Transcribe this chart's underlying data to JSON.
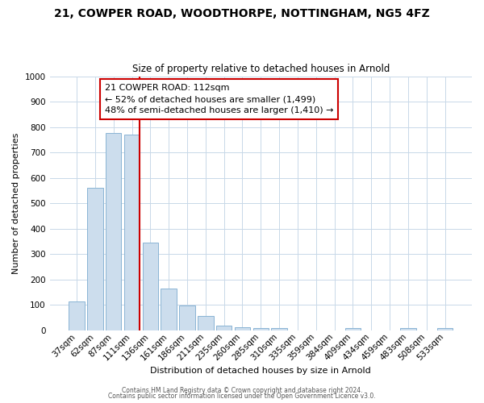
{
  "title": "21, COWPER ROAD, WOODTHORPE, NOTTINGHAM, NG5 4FZ",
  "subtitle": "Size of property relative to detached houses in Arnold",
  "xlabel": "Distribution of detached houses by size in Arnold",
  "ylabel": "Number of detached properties",
  "bar_labels": [
    "37sqm",
    "62sqm",
    "87sqm",
    "111sqm",
    "136sqm",
    "161sqm",
    "186sqm",
    "211sqm",
    "235sqm",
    "260sqm",
    "285sqm",
    "310sqm",
    "335sqm",
    "359sqm",
    "384sqm",
    "409sqm",
    "434sqm",
    "459sqm",
    "483sqm",
    "508sqm",
    "533sqm"
  ],
  "bar_values": [
    113,
    560,
    775,
    770,
    345,
    165,
    98,
    55,
    18,
    13,
    10,
    8,
    0,
    0,
    0,
    10,
    0,
    0,
    10,
    0,
    10
  ],
  "bar_color": "#ccdded",
  "bar_edge_color": "#8ab4d4",
  "vline_x_index": 3,
  "vline_color": "#cc0000",
  "annotation_title": "21 COWPER ROAD: 112sqm",
  "annotation_line1": "← 52% of detached houses are smaller (1,499)",
  "annotation_line2": "48% of semi-detached houses are larger (1,410) →",
  "annotation_box_facecolor": "#ffffff",
  "annotation_box_edgecolor": "#cc0000",
  "ylim": [
    0,
    1000
  ],
  "yticks": [
    0,
    100,
    200,
    300,
    400,
    500,
    600,
    700,
    800,
    900,
    1000
  ],
  "footer1": "Contains HM Land Registry data © Crown copyright and database right 2024.",
  "footer2": "Contains public sector information licensed under the Open Government Licence v3.0.",
  "bg_color": "#ffffff",
  "plot_bg_color": "#ffffff",
  "grid_color": "#c8d8e8",
  "title_fontsize": 10,
  "subtitle_fontsize": 8.5,
  "xlabel_fontsize": 8,
  "ylabel_fontsize": 8,
  "tick_fontsize": 7.5,
  "annotation_fontsize": 8
}
